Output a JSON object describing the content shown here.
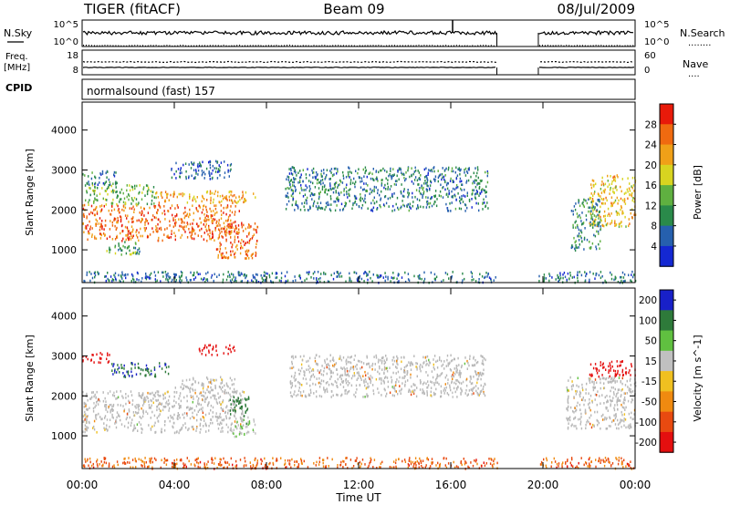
{
  "header": {
    "radar": "TIGER (fitACF)",
    "beam": "Beam 09",
    "date": "08/Jul/2009"
  },
  "noise_panel": {
    "left_label": "N.Sky",
    "right_label": "N.Search",
    "right_key": "........",
    "left_ticks": [
      "10^5",
      "10^0"
    ],
    "right_ticks": [
      "10^5",
      "10^0"
    ]
  },
  "freq_panel": {
    "left_label_line1": "Freq.",
    "left_label_line2": "[MHz]",
    "right_label": "Nave",
    "right_key": "....",
    "left_ticks": [
      "18",
      "8"
    ],
    "right_ticks": [
      "60",
      "0"
    ]
  },
  "cpid_panel": {
    "label": "CPID",
    "text": "normalsound (fast) 157"
  },
  "colors": {
    "power_scale": [
      "#1428d2",
      "#2660ae",
      "#2a8a4a",
      "#5fb040",
      "#d8d420",
      "#f0a018",
      "#f06a10",
      "#e81a0a"
    ],
    "velocity_scale": [
      "#1820c8",
      "#2e7a3a",
      "#60c040",
      "#c0c0c0",
      "#f0c020",
      "#f08a10",
      "#e84a10",
      "#e40f0f"
    ],
    "ground_scatter": "#b8b8b8"
  },
  "chart_data": [
    {
      "type": "heatmap",
      "panel": "power",
      "title": "",
      "xlabel": "Time UT",
      "ylabel": "Slant Range [km]",
      "xlim_hours": [
        0,
        24
      ],
      "ylim_km": [
        180,
        4700
      ],
      "x_ticks": [
        "00:00",
        "04:00",
        "08:00",
        "12:00",
        "16:00",
        "20:00",
        "00:00"
      ],
      "y_ticks": [
        "1000",
        "2000",
        "3000",
        "4000"
      ],
      "colorbar": {
        "label": "Power [dB]",
        "ticks": [
          "4",
          "8",
          "12",
          "16",
          "20",
          "24",
          "28"
        ],
        "range": [
          0,
          32
        ]
      },
      "data_gap_hours": [
        18.0,
        19.8
      ],
      "regions": [
        {
          "t0": 0.0,
          "t1": 6.8,
          "r0": 1250,
          "r1": 2150,
          "power": 26
        },
        {
          "t0": 0.1,
          "t1": 3.2,
          "r0": 2150,
          "r1": 2650,
          "power": 14
        },
        {
          "t0": 3.2,
          "t1": 7.5,
          "r0": 2200,
          "r1": 2500,
          "power": 22
        },
        {
          "t0": 5.8,
          "t1": 7.6,
          "r0": 800,
          "r1": 1700,
          "power": 25
        },
        {
          "t0": 1.0,
          "t1": 2.5,
          "r0": 900,
          "r1": 1250,
          "power": 12
        },
        {
          "t0": 0.0,
          "t1": 1.5,
          "r0": 2650,
          "r1": 3000,
          "power": 8
        },
        {
          "t0": 3.8,
          "t1": 6.5,
          "r0": 2800,
          "r1": 3250,
          "power": 6
        },
        {
          "t0": 8.8,
          "t1": 17.6,
          "r0": 2000,
          "r1": 3100,
          "power": 8
        },
        {
          "t0": 22.0,
          "t1": 24.0,
          "r0": 1600,
          "r1": 2900,
          "power": 20
        },
        {
          "t0": 21.2,
          "t1": 22.5,
          "r0": 1000,
          "r1": 2300,
          "power": 10
        },
        {
          "t0": 0.0,
          "t1": 18.0,
          "r0": 200,
          "r1": 480,
          "power": 7
        },
        {
          "t0": 19.8,
          "t1": 24.0,
          "r0": 200,
          "r1": 480,
          "power": 7
        }
      ]
    },
    {
      "type": "heatmap",
      "panel": "velocity",
      "title": "",
      "xlabel": "Time UT",
      "ylabel": "Slant Range [km]",
      "xlim_hours": [
        0,
        24
      ],
      "ylim_km": [
        180,
        4700
      ],
      "x_ticks": [
        "00:00",
        "04:00",
        "08:00",
        "12:00",
        "16:00",
        "20:00",
        "00:00"
      ],
      "y_ticks": [
        "1000",
        "2000",
        "3000",
        "4000"
      ],
      "colorbar": {
        "label": "Velocity [m s^-1]",
        "ticks": [
          "200",
          "100",
          "50",
          "15",
          "-15",
          "-50",
          "-100",
          "-200"
        ],
        "range": [
          -250,
          250
        ]
      },
      "data_gap_hours": [
        18.0,
        19.8
      ],
      "regions": [
        {
          "t0": 0.0,
          "t1": 7.0,
          "r0": 1100,
          "r1": 2150,
          "velocity": 0,
          "ground_scatter": true
        },
        {
          "t0": 4.0,
          "t1": 6.6,
          "r0": 2150,
          "r1": 2500,
          "velocity": 0,
          "ground_scatter": true
        },
        {
          "t0": 6.5,
          "t1": 7.5,
          "r0": 1000,
          "r1": 1500,
          "velocity": 60
        },
        {
          "t0": 6.4,
          "t1": 7.3,
          "r0": 1500,
          "r1": 2000,
          "velocity": 150
        },
        {
          "t0": 1.2,
          "t1": 3.8,
          "r0": 2500,
          "r1": 2850,
          "velocity": 180
        },
        {
          "t0": 0.0,
          "t1": 1.2,
          "r0": 2850,
          "r1": 3100,
          "velocity": -180
        },
        {
          "t0": 5.0,
          "t1": 6.6,
          "r0": 3050,
          "r1": 3300,
          "velocity": -220
        },
        {
          "t0": 9.0,
          "t1": 17.5,
          "r0": 2000,
          "r1": 3050,
          "velocity": 0,
          "ground_scatter": true
        },
        {
          "t0": 22.0,
          "t1": 24.0,
          "r0": 2500,
          "r1": 2900,
          "velocity": -180
        },
        {
          "t0": 21.0,
          "t1": 24.0,
          "r0": 1200,
          "r1": 2500,
          "velocity": 0,
          "ground_scatter": true
        },
        {
          "t0": 0.0,
          "t1": 18.0,
          "r0": 200,
          "r1": 480,
          "velocity": -60
        },
        {
          "t0": 19.8,
          "t1": 24.0,
          "r0": 200,
          "r1": 480,
          "velocity": -60
        }
      ]
    }
  ]
}
